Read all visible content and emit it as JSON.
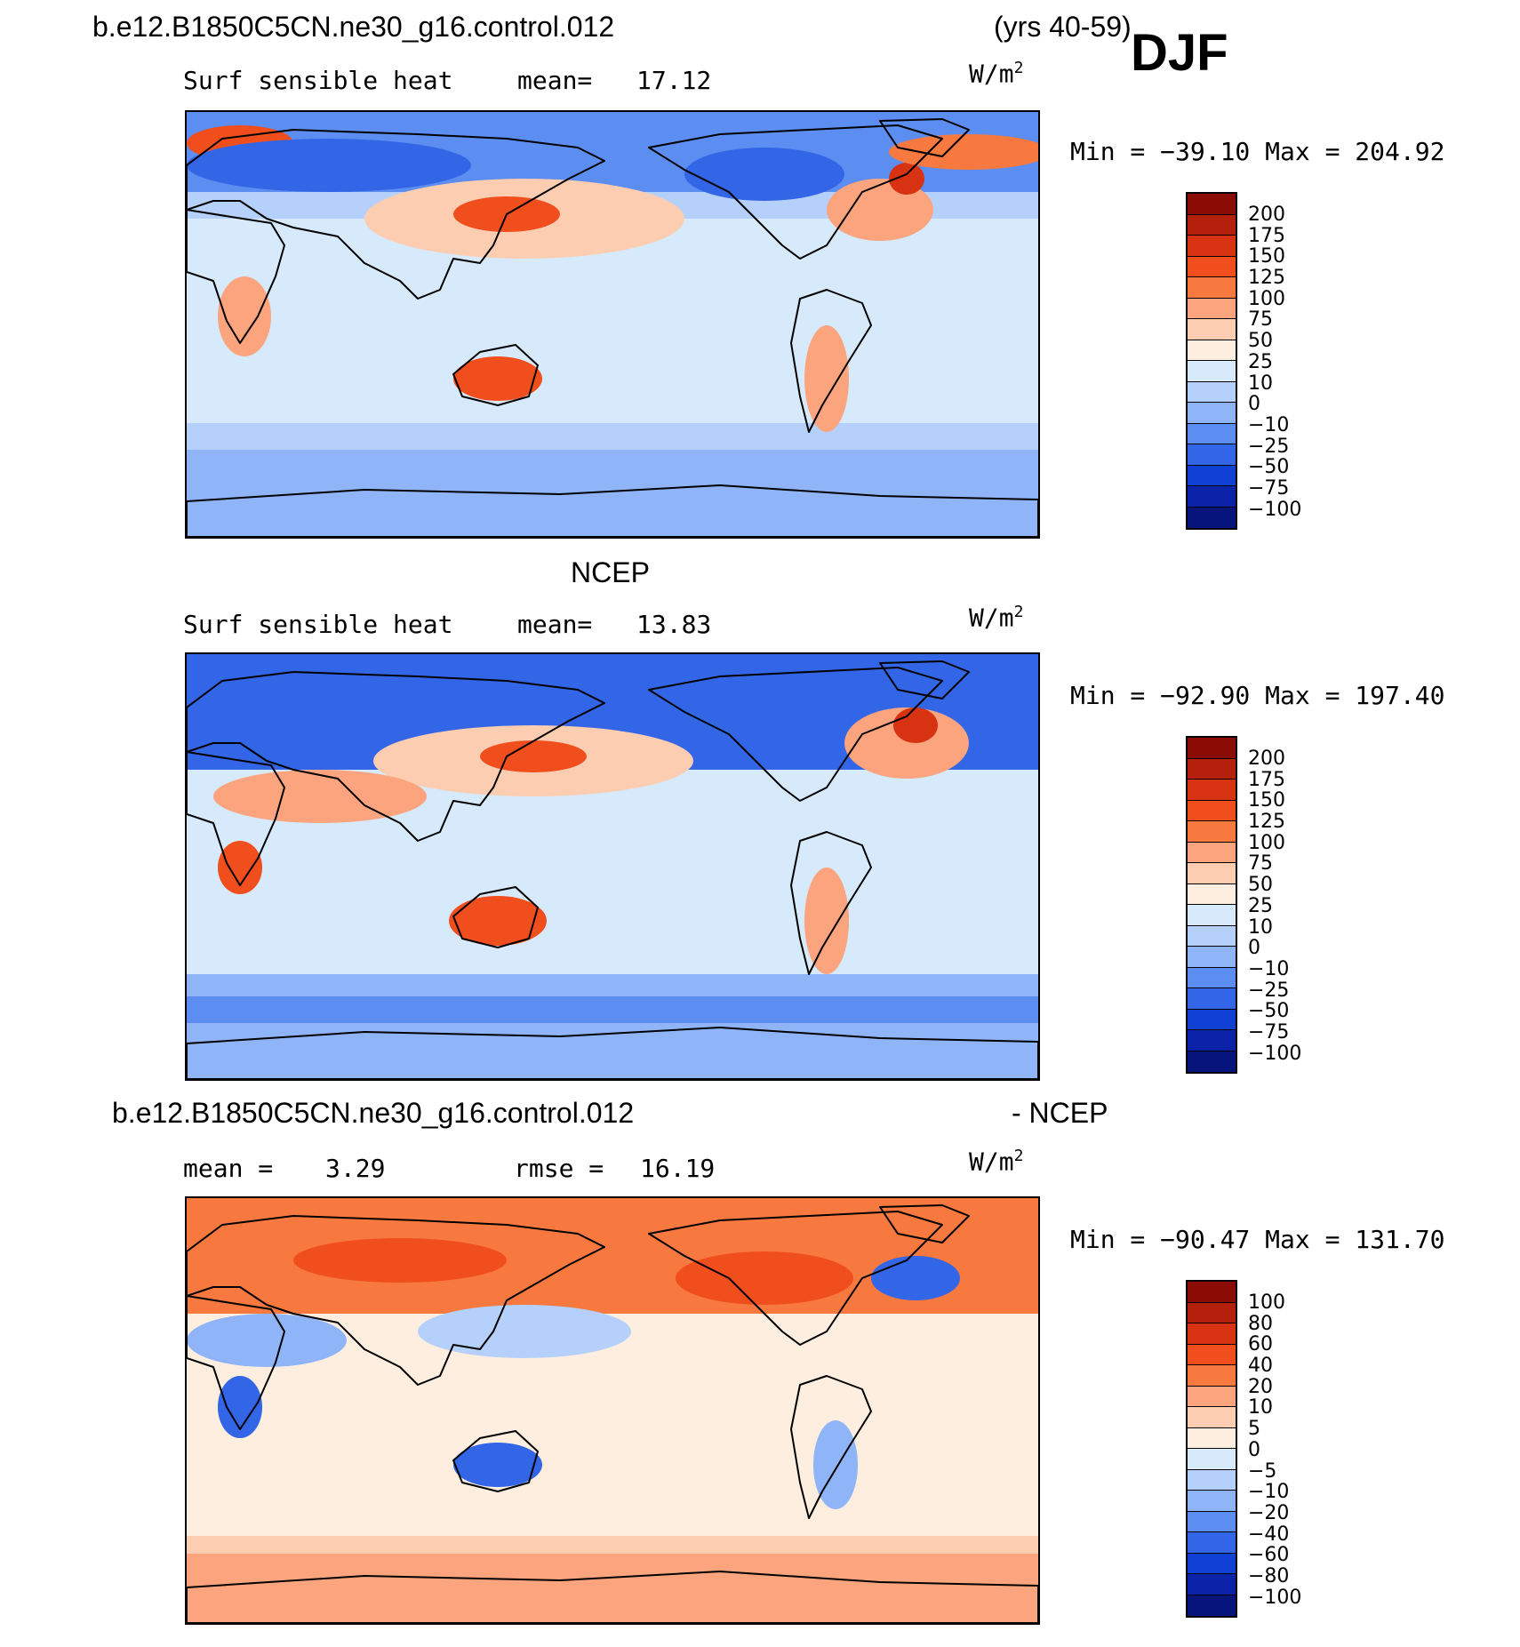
{
  "header": {
    "case_name": "b.e12.B1850C5CN.ne30_g16.control.012",
    "years": "(yrs 40-59)",
    "season": "DJF"
  },
  "panels": [
    {
      "title": "",
      "left_label": "Surf sensible heat",
      "mid_label": "mean=",
      "mid_value": "17.12",
      "units": "W/m",
      "units_sup": "2",
      "min_max": "Min = −39.10 Max = 204.92",
      "colorbar_labels": [
        "200",
        "175",
        "150",
        "125",
        "100",
        "75",
        "50",
        "25",
        "10",
        "0",
        "−10",
        "−25",
        "−50",
        "−75",
        "−100"
      ],
      "colorbar_colors": [
        "#8b0b05",
        "#b5200c",
        "#d73211",
        "#f14e1e",
        "#f7793f",
        "#fba47e",
        "#fdcdb1",
        "#fdeee0",
        "#d6eafc",
        "#b5d1fb",
        "#8fb4f7",
        "#5c8df0",
        "#3366e6",
        "#1140d4",
        "#0a22a8",
        "#07147c"
      ]
    },
    {
      "title": "NCEP",
      "left_label": "Surf sensible heat",
      "mid_label": "mean=",
      "mid_value": "13.83",
      "units": "W/m",
      "units_sup": "2",
      "min_max": "Min = −92.90 Max = 197.40",
      "colorbar_labels": [
        "200",
        "175",
        "150",
        "125",
        "100",
        "75",
        "50",
        "25",
        "10",
        "0",
        "−10",
        "−25",
        "−50",
        "−75",
        "−100"
      ],
      "colorbar_colors": [
        "#8b0b05",
        "#b5200c",
        "#d73211",
        "#f14e1e",
        "#f7793f",
        "#fba47e",
        "#fdcdb1",
        "#fdeee0",
        "#d6eafc",
        "#b5d1fb",
        "#8fb4f7",
        "#5c8df0",
        "#3366e6",
        "#1140d4",
        "#0a22a8",
        "#07147c"
      ]
    },
    {
      "title_left": "b.e12.B1850C5CN.ne30_g16.control.012",
      "title_right": "- NCEP",
      "left_label": "mean =",
      "left_value": "3.29",
      "mid_label": "rmse =",
      "mid_value": "16.19",
      "units": "W/m",
      "units_sup": "2",
      "min_max": "Min = −90.47 Max = 131.70",
      "colorbar_labels": [
        "100",
        "80",
        "60",
        "40",
        "20",
        "10",
        "5",
        "0",
        "−5",
        "−10",
        "−20",
        "−40",
        "−60",
        "−80",
        "−100"
      ],
      "colorbar_colors": [
        "#8b0b05",
        "#b5200c",
        "#d73211",
        "#f14e1e",
        "#f7793f",
        "#fba47e",
        "#fdcdb1",
        "#fdeee0",
        "#d6eafc",
        "#b5d1fb",
        "#8fb4f7",
        "#5c8df0",
        "#3366e6",
        "#1140d4",
        "#0a22a8",
        "#07147c"
      ]
    }
  ]
}
